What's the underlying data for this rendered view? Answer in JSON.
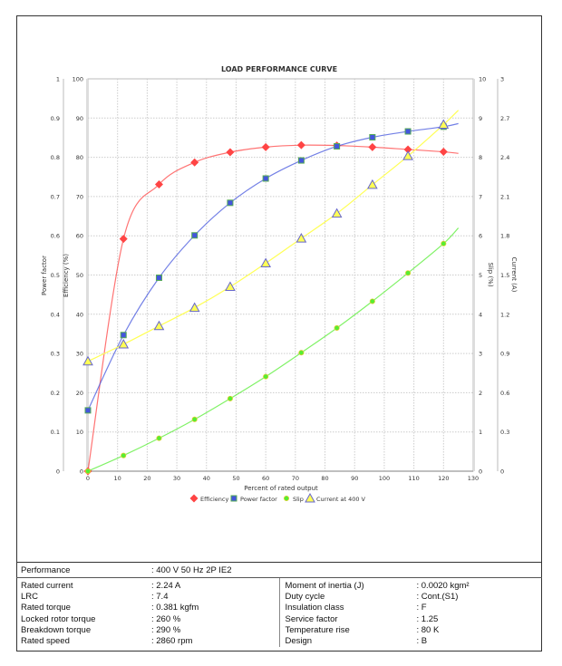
{
  "chart_data": {
    "type": "line",
    "title": "LOAD PERFORMANCE CURVE",
    "xlabel": "Percent of rated output",
    "xlim": [
      0,
      130
    ],
    "x_ticks": [
      0,
      10,
      20,
      30,
      40,
      50,
      60,
      70,
      80,
      90,
      100,
      110,
      120,
      130
    ],
    "axes": {
      "power_factor": {
        "label": "Power factor",
        "lim": [
          0,
          1
        ],
        "ticks": [
          "0",
          "0.1",
          "0.2",
          "0.3",
          "0.4",
          "0.5",
          "0.6",
          "0.7",
          "0.8",
          "0.9",
          "1"
        ]
      },
      "efficiency": {
        "label": "Efficiency (%)",
        "lim": [
          0,
          100
        ],
        "ticks": [
          "0",
          "10",
          "20",
          "30",
          "40",
          "50",
          "60",
          "70",
          "80",
          "90",
          "100"
        ]
      },
      "slip": {
        "label": "Slip (%)",
        "lim": [
          0,
          10
        ],
        "ticks": [
          "0",
          "1",
          "2",
          "3",
          "4",
          "5",
          "6",
          "7",
          "8",
          "9",
          "10"
        ]
      },
      "current": {
        "label": "Current (A)",
        "lim": [
          0,
          3
        ],
        "ticks": [
          "0",
          "0.3",
          "0.6",
          "0.9",
          "1.2",
          "1.5",
          "1.8",
          "2.1",
          "2.4",
          "2.7",
          "3"
        ]
      }
    },
    "x": [
      0,
      12,
      24,
      36,
      48,
      60,
      72,
      84,
      96,
      108,
      120
    ],
    "series": [
      {
        "name": "Efficiency",
        "axis": "efficiency",
        "color": "#ff4444",
        "marker": "diamond",
        "values": [
          0,
          59.2,
          73.1,
          78.7,
          81.3,
          82.6,
          83.1,
          83.0,
          82.6,
          82.0,
          81.4
        ],
        "fit_end": 81.0
      },
      {
        "name": "Power factor",
        "axis": "power_factor",
        "color": "#4455dd",
        "marker": "square",
        "values": [
          0.155,
          0.347,
          0.493,
          0.601,
          0.684,
          0.746,
          0.792,
          0.828,
          0.851,
          0.866,
          0.878
        ],
        "fit_end": 0.886
      },
      {
        "name": "Slip",
        "axis": "slip",
        "color": "#55ee33",
        "marker": "circle",
        "values": [
          0,
          0.4,
          0.84,
          1.32,
          1.85,
          2.41,
          3.02,
          3.65,
          4.33,
          5.05,
          5.8
        ],
        "fit_end": 6.2
      },
      {
        "name": "Current at 400 V",
        "axis": "current",
        "color": "#ffff55",
        "marker": "triangle",
        "values": [
          0.84,
          0.97,
          1.11,
          1.25,
          1.41,
          1.59,
          1.78,
          1.97,
          2.19,
          2.41,
          2.65
        ],
        "fit_end": 2.76
      }
    ],
    "legend": "bottom",
    "grid": true
  },
  "spec": {
    "performance": {
      "label": "Performance",
      "value": ": 400 V 50 Hz 2P IE2"
    },
    "left": [
      {
        "label": "Rated current",
        "value": ": 2.24 A"
      },
      {
        "label": "LRC",
        "value": ": 7.4"
      },
      {
        "label": "Rated torque",
        "value": ": 0.381 kgfm"
      },
      {
        "label": "Locked rotor torque",
        "value": ": 260 %"
      },
      {
        "label": "Breakdown torque",
        "value": ": 290 %"
      },
      {
        "label": "Rated speed",
        "value": ": 2860 rpm"
      }
    ],
    "right": [
      {
        "label": "Moment of inertia (J)",
        "value": ": 0.0020 kgm²"
      },
      {
        "label": "Duty cycle",
        "value": ": Cont.(S1)"
      },
      {
        "label": "Insulation class",
        "value": ": F"
      },
      {
        "label": "Service factor",
        "value": ": 1.25"
      },
      {
        "label": "Temperature rise",
        "value": ": 80 K"
      },
      {
        "label": "Design",
        "value": ": B"
      }
    ]
  }
}
